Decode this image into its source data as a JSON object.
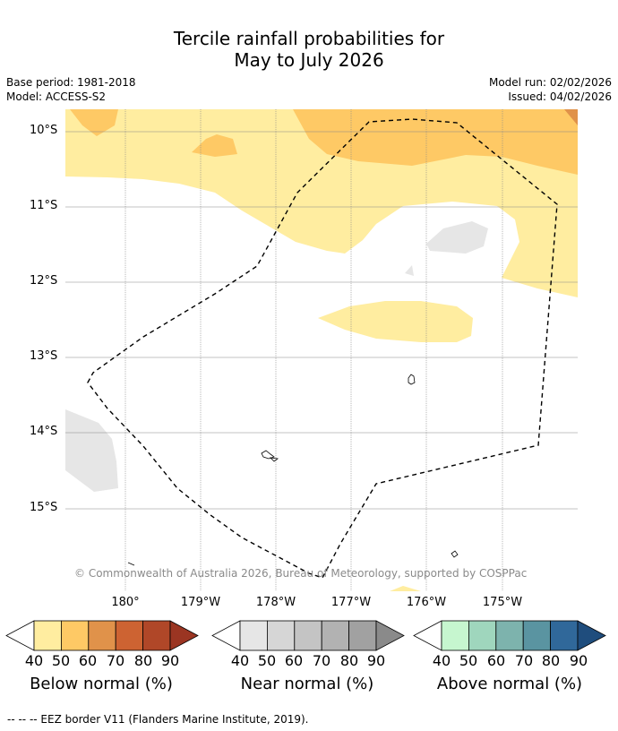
{
  "title_line1": "Tercile rainfall probabilities for",
  "title_line2": "May to July 2026",
  "base_period": "Base period: 1981-2018",
  "model": "Model: ACCESS-S2",
  "model_run": "Model run: 02/02/2026",
  "issued": "Issued: 04/02/2026",
  "lat_labels": [
    "10°S",
    "11°S",
    "12°S",
    "13°S",
    "14°S",
    "15°S"
  ],
  "lon_labels": [
    "180°",
    "179°W",
    "178°W",
    "177°W",
    "176°W",
    "175°W"
  ],
  "copyright": "© Commonwealth of Australia 2026, Bureau of Meteorology, supported by COSPPac",
  "colorbars": {
    "below": {
      "title": "Below normal (%)",
      "ticks": [
        "40",
        "50",
        "60",
        "70",
        "80",
        "90"
      ],
      "colors": [
        "#ffeda0",
        "#fec965",
        "#e0924a",
        "#cd6332",
        "#b04728",
        "#9b3522"
      ]
    },
    "near": {
      "title": "Near normal (%)",
      "ticks": [
        "40",
        "50",
        "60",
        "70",
        "80",
        "90"
      ],
      "colors": [
        "#e6e6e6",
        "#d6d6d6",
        "#c4c4c4",
        "#b2b2b2",
        "#a1a1a1",
        "#8a8a8a"
      ]
    },
    "above": {
      "title": "Above normal (%)",
      "ticks": [
        "40",
        "50",
        "60",
        "70",
        "80",
        "90"
      ],
      "colors": [
        "#c6f6cf",
        "#9fd6bd",
        "#7db3ad",
        "#5a94a1",
        "#30689a",
        "#1f4d7d"
      ]
    }
  },
  "legend_footer": "--  --  -- EEZ border V11 (Flanders Marine Institute, 2019)."
}
